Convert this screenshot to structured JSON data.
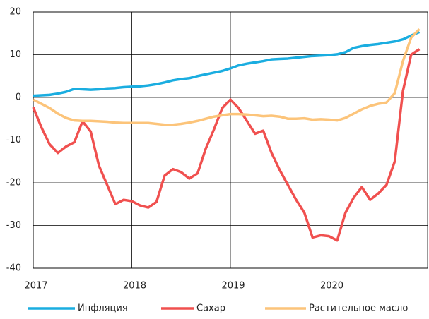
{
  "chart_data": {
    "type": "line",
    "x": [
      2017,
      2017.083,
      2017.167,
      2017.25,
      2017.333,
      2017.417,
      2017.5,
      2017.583,
      2017.667,
      2017.75,
      2017.833,
      2017.917,
      2018,
      2018.083,
      2018.167,
      2018.25,
      2018.333,
      2018.417,
      2018.5,
      2018.583,
      2018.667,
      2018.75,
      2018.833,
      2018.917,
      2019,
      2019.083,
      2019.167,
      2019.25,
      2019.333,
      2019.417,
      2019.5,
      2019.583,
      2019.667,
      2019.75,
      2019.833,
      2019.917,
      2020,
      2020.083,
      2020.167,
      2020.25,
      2020.333,
      2020.417,
      2020.5,
      2020.583,
      2020.667,
      2020.75,
      2020.833,
      2020.917
    ],
    "series": [
      {
        "name": "Инфляция",
        "color": "#1aade0",
        "values": [
          0.4,
          0.5,
          0.6,
          0.9,
          1.3,
          2.0,
          1.9,
          1.8,
          1.9,
          2.1,
          2.2,
          2.4,
          2.5,
          2.6,
          2.8,
          3.1,
          3.5,
          4.0,
          4.3,
          4.5,
          5.0,
          5.4,
          5.8,
          6.2,
          6.8,
          7.5,
          7.9,
          8.2,
          8.5,
          8.9,
          9.0,
          9.1,
          9.3,
          9.5,
          9.7,
          9.8,
          9.9,
          10.1,
          10.6,
          11.6,
          12.0,
          12.3,
          12.5,
          12.8,
          13.1,
          13.6,
          14.5,
          15.3
        ]
      },
      {
        "name": "Сахар",
        "color": "#f0504f",
        "values": [
          -2.3,
          -7,
          -11,
          -13,
          -11.5,
          -10.5,
          -5.6,
          -8,
          -16,
          -20.5,
          -25,
          -24,
          -24.3,
          -25.3,
          -25.8,
          -24.5,
          -18.3,
          -16.8,
          -17.5,
          -19,
          -17.8,
          -12,
          -7.5,
          -2.5,
          -0.5,
          -2.5,
          -5.5,
          -8.5,
          -7.8,
          -13,
          -17,
          -20.5,
          -24,
          -27,
          -32.8,
          -32.3,
          -32.5,
          -33.5,
          -27,
          -23.5,
          -21,
          -24,
          -22.5,
          -20.5,
          -15,
          1.5,
          10,
          11.3
        ]
      },
      {
        "name": "Растительное масло",
        "color": "#fcc47a",
        "values": [
          -0.5,
          -1.5,
          -2.5,
          -3.8,
          -4.8,
          -5.4,
          -5.5,
          -5.5,
          -5.6,
          -5.7,
          -5.9,
          -6.0,
          -6.0,
          -6.0,
          -6.0,
          -6.2,
          -6.4,
          -6.4,
          -6.2,
          -5.9,
          -5.5,
          -5.0,
          -4.5,
          -4.2,
          -3.9,
          -3.9,
          -4.0,
          -4.2,
          -4.4,
          -4.3,
          -4.5,
          -5.0,
          -5.0,
          -4.9,
          -5.2,
          -5.1,
          -5.2,
          -5.4,
          -4.8,
          -3.8,
          -2.8,
          -2.0,
          -1.5,
          -1.2,
          1.0,
          8.5,
          14.0,
          16.0
        ]
      }
    ],
    "xlim": [
      2017,
      2021
    ],
    "xticks": [
      2017,
      2018,
      2019,
      2020
    ],
    "ylim": [
      -40,
      20
    ],
    "yticks": [
      -40,
      -30,
      -20,
      -10,
      0,
      10,
      20
    ],
    "grid": true,
    "legend": "bottom"
  }
}
